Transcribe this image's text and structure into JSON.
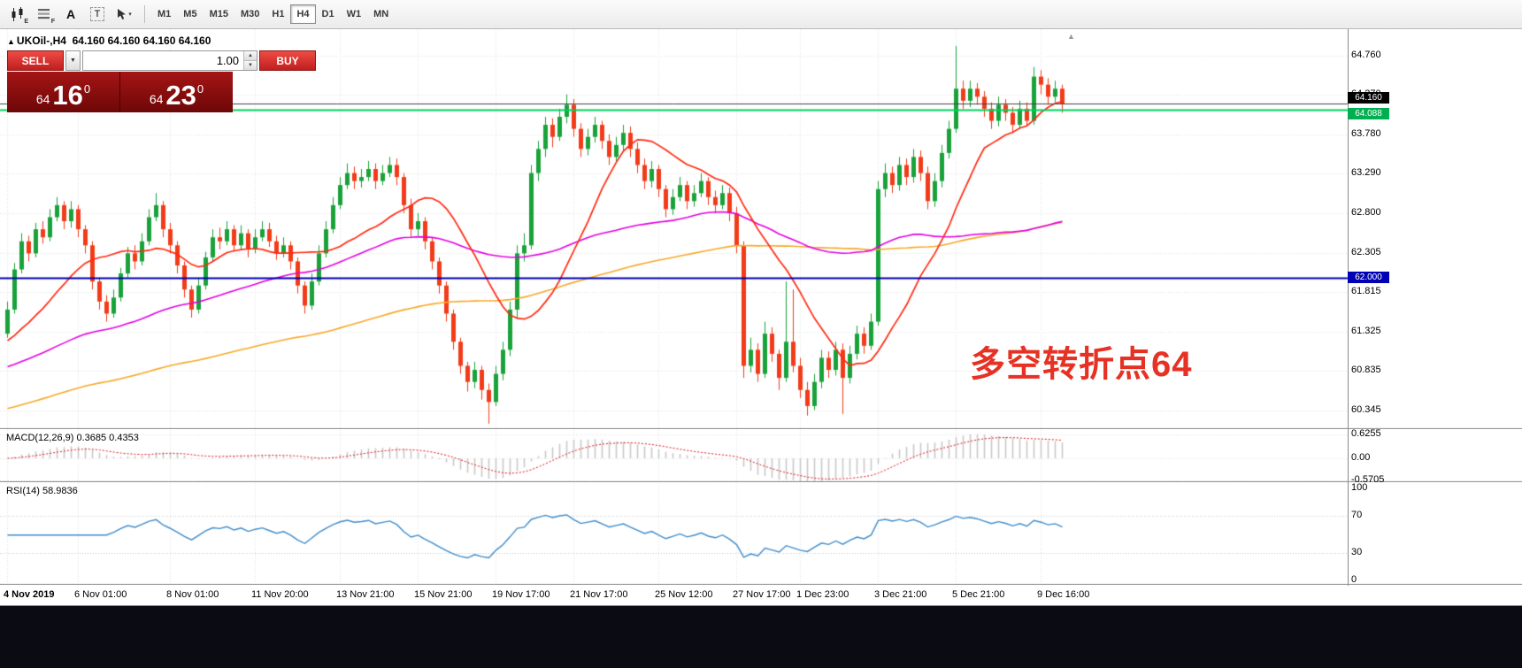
{
  "toolbar": {
    "icon_names": [
      "candlestick-chart-icon",
      "indicator-list-icon",
      "insert-text-icon",
      "insert-label-icon",
      "cursor-mode-icon"
    ],
    "icon_sub_e": "E",
    "icon_sub_f": "F",
    "icon_a": "A",
    "icon_t": "T",
    "cursor_caret": "▾",
    "timeframes": [
      "M1",
      "M5",
      "M15",
      "M30",
      "H1",
      "H4",
      "D1",
      "W1",
      "MN"
    ],
    "active_timeframe": "H4"
  },
  "chart": {
    "header_marker": "▲",
    "symbol_line": "UKOil-,H4  64.160 64.160 64.160 64.160",
    "annotation": "多空转折点64",
    "price_scale": [
      "64.760",
      "64.270",
      "63.780",
      "63.290",
      "62.800",
      "62.305",
      "61.815",
      "61.325",
      "60.835",
      "60.345"
    ],
    "badges": {
      "bid": "64.160",
      "level": "64.088",
      "hline": "62.000"
    },
    "shift_marker": "▲"
  },
  "trade_panel": {
    "sell_label": "SELL",
    "buy_label": "BUY",
    "volume": "1.00",
    "caret": "▼",
    "spin_up": "▲",
    "spin_down": "▼",
    "sell_price": {
      "small": "64",
      "big": "16",
      "sup": "0"
    },
    "buy_price": {
      "small": "64",
      "big": "23",
      "sup": "0"
    }
  },
  "macd": {
    "title": "MACD(12,26,9) 0.3685 0.4353",
    "scale": [
      "0.6255",
      "0.00",
      "-0.5705"
    ]
  },
  "rsi": {
    "title": "RSI(14) 58.9836",
    "scale": [
      "100",
      "70",
      "30",
      "0"
    ]
  },
  "time_axis": [
    {
      "label": "4 Nov 2019",
      "bar": 0
    },
    {
      "label": "6 Nov 01:00",
      "bar": 10
    },
    {
      "label": "8 Nov 01:00",
      "bar": 23
    },
    {
      "label": "11 Nov 20:00",
      "bar": 35
    },
    {
      "label": "13 Nov 21:00",
      "bar": 47
    },
    {
      "label": "15 Nov 21:00",
      "bar": 58
    },
    {
      "label": "19 Nov 17:00",
      "bar": 69
    },
    {
      "label": "21 Nov 17:00",
      "bar": 80
    },
    {
      "label": "25 Nov 12:00",
      "bar": 92
    },
    {
      "label": "27 Nov 17:00",
      "bar": 103
    },
    {
      "label": "1 Dec 23:00",
      "bar": 112
    },
    {
      "label": "3 Dec 21:00",
      "bar": 123
    },
    {
      "label": "5 Dec 21:00",
      "bar": 134
    },
    {
      "label": "9 Dec 16:00",
      "bar": 146
    }
  ],
  "chart_data": {
    "type": "candlestick",
    "symbol": "UKOil-",
    "timeframe": "H4",
    "y_ticks": [
      64.76,
      64.27,
      63.78,
      63.29,
      62.8,
      62.305,
      61.815,
      61.325,
      60.835,
      60.345
    ],
    "levels": {
      "bid": 64.16,
      "green_line": 64.088,
      "blue_line": 62.0
    },
    "indicators": {
      "macd": "MACD(12,26,9)",
      "macd_values": [
        0.3685,
        0.4353
      ],
      "rsi": "RSI(14)",
      "rsi_value": 58.9836
    },
    "colors": {
      "up": "#1aa23a",
      "down": "#f23b19",
      "ma_fast": "#ff2a12",
      "ma_mid": "#e300e3",
      "ma_slow": "#f7a928",
      "hline_blue": "#0000b4",
      "hline_green": "#00d15c",
      "macd_hist": "#c9c9c9",
      "macd_signal": "#e01414",
      "rsi_line": "#3f8ccc"
    },
    "candles": [
      [
        61.3,
        61.7,
        61.25,
        61.6
      ],
      [
        61.6,
        62.18,
        61.55,
        62.1
      ],
      [
        62.1,
        62.55,
        62.05,
        62.45
      ],
      [
        62.45,
        62.52,
        62.2,
        62.3
      ],
      [
        62.3,
        62.68,
        62.25,
        62.6
      ],
      [
        62.6,
        62.7,
        62.42,
        62.5
      ],
      [
        62.5,
        62.85,
        62.45,
        62.75
      ],
      [
        62.75,
        63.0,
        62.7,
        62.9
      ],
      [
        62.9,
        62.95,
        62.6,
        62.7
      ],
      [
        62.7,
        62.95,
        62.62,
        62.85
      ],
      [
        62.85,
        62.9,
        62.5,
        62.6
      ],
      [
        62.6,
        62.65,
        62.3,
        62.4
      ],
      [
        62.4,
        62.45,
        61.85,
        61.95
      ],
      [
        61.95,
        62.0,
        61.6,
        61.7
      ],
      [
        61.7,
        61.78,
        61.45,
        61.55
      ],
      [
        61.55,
        61.85,
        61.5,
        61.75
      ],
      [
        61.75,
        62.12,
        61.7,
        62.05
      ],
      [
        62.05,
        62.38,
        62.0,
        62.3
      ],
      [
        62.3,
        62.4,
        62.1,
        62.2
      ],
      [
        62.2,
        62.55,
        62.15,
        62.45
      ],
      [
        62.45,
        62.85,
        62.4,
        62.75
      ],
      [
        62.75,
        63.05,
        62.7,
        62.9
      ],
      [
        62.9,
        62.95,
        62.5,
        62.6
      ],
      [
        62.6,
        62.68,
        62.3,
        62.4
      ],
      [
        62.4,
        62.45,
        62.05,
        62.15
      ],
      [
        62.15,
        62.2,
        61.75,
        61.85
      ],
      [
        61.85,
        61.9,
        61.5,
        61.6
      ],
      [
        61.6,
        62.0,
        61.55,
        61.9
      ],
      [
        61.9,
        62.32,
        61.85,
        62.25
      ],
      [
        62.25,
        62.6,
        62.2,
        62.5
      ],
      [
        62.5,
        62.62,
        62.35,
        62.45
      ],
      [
        62.45,
        62.7,
        62.4,
        62.6
      ],
      [
        62.6,
        62.65,
        62.32,
        62.4
      ],
      [
        62.4,
        62.65,
        62.35,
        62.55
      ],
      [
        62.55,
        62.6,
        62.25,
        62.35
      ],
      [
        62.35,
        62.6,
        62.3,
        62.5
      ],
      [
        62.5,
        62.7,
        62.45,
        62.6
      ],
      [
        62.6,
        62.68,
        62.38,
        62.45
      ],
      [
        62.45,
        62.52,
        62.22,
        62.3
      ],
      [
        62.3,
        62.5,
        62.25,
        62.4
      ],
      [
        62.4,
        62.45,
        62.1,
        62.2
      ],
      [
        62.2,
        62.25,
        61.8,
        61.9
      ],
      [
        61.9,
        61.95,
        61.55,
        61.65
      ],
      [
        61.65,
        62.05,
        61.6,
        61.95
      ],
      [
        61.95,
        62.4,
        61.9,
        62.3
      ],
      [
        62.3,
        62.7,
        62.25,
        62.6
      ],
      [
        62.6,
        63.0,
        62.55,
        62.9
      ],
      [
        62.9,
        63.25,
        62.85,
        63.15
      ],
      [
        63.15,
        63.42,
        63.1,
        63.3
      ],
      [
        63.3,
        63.38,
        63.1,
        63.2
      ],
      [
        63.2,
        63.35,
        63.12,
        63.25
      ],
      [
        63.25,
        63.45,
        63.2,
        63.35
      ],
      [
        63.35,
        63.42,
        63.1,
        63.2
      ],
      [
        63.2,
        63.4,
        63.15,
        63.3
      ],
      [
        63.3,
        63.5,
        63.25,
        63.4
      ],
      [
        63.4,
        63.48,
        63.15,
        63.25
      ],
      [
        63.25,
        63.3,
        62.8,
        62.9
      ],
      [
        62.9,
        62.98,
        62.5,
        62.6
      ],
      [
        62.6,
        62.8,
        62.52,
        62.7
      ],
      [
        62.7,
        62.75,
        62.35,
        62.45
      ],
      [
        62.45,
        62.5,
        62.1,
        62.2
      ],
      [
        62.2,
        62.25,
        61.8,
        61.9
      ],
      [
        61.9,
        61.95,
        61.45,
        61.55
      ],
      [
        61.55,
        61.6,
        61.1,
        61.2
      ],
      [
        61.2,
        61.25,
        60.8,
        60.9
      ],
      [
        60.9,
        60.95,
        60.58,
        60.7
      ],
      [
        60.7,
        60.95,
        60.62,
        60.85
      ],
      [
        60.85,
        60.9,
        60.48,
        60.6
      ],
      [
        60.6,
        60.68,
        60.18,
        60.45
      ],
      [
        60.45,
        60.9,
        60.4,
        60.8
      ],
      [
        60.8,
        61.2,
        60.72,
        61.1
      ],
      [
        61.1,
        61.7,
        61.02,
        61.6
      ],
      [
        61.6,
        62.4,
        61.5,
        62.3
      ],
      [
        62.3,
        62.55,
        62.2,
        62.4
      ],
      [
        62.4,
        63.4,
        62.35,
        63.3
      ],
      [
        63.3,
        63.7,
        63.2,
        63.6
      ],
      [
        63.6,
        64.0,
        63.5,
        63.9
      ],
      [
        63.9,
        63.98,
        63.62,
        63.75
      ],
      [
        63.75,
        64.1,
        63.7,
        64.0
      ],
      [
        64.0,
        64.28,
        63.92,
        64.15
      ],
      [
        64.15,
        64.22,
        63.75,
        63.85
      ],
      [
        63.85,
        63.92,
        63.5,
        63.6
      ],
      [
        63.6,
        63.85,
        63.52,
        63.75
      ],
      [
        63.75,
        64.0,
        63.68,
        63.9
      ],
      [
        63.9,
        63.95,
        63.6,
        63.7
      ],
      [
        63.7,
        63.78,
        63.4,
        63.5
      ],
      [
        63.5,
        63.75,
        63.45,
        63.65
      ],
      [
        63.65,
        63.9,
        63.58,
        63.8
      ],
      [
        63.8,
        63.88,
        63.5,
        63.6
      ],
      [
        63.6,
        63.68,
        63.3,
        63.4
      ],
      [
        63.4,
        63.48,
        63.1,
        63.2
      ],
      [
        63.2,
        63.45,
        63.12,
        63.35
      ],
      [
        63.35,
        63.4,
        63.0,
        63.1
      ],
      [
        63.1,
        63.15,
        62.75,
        62.85
      ],
      [
        62.85,
        63.1,
        62.78,
        63.0
      ],
      [
        63.0,
        63.25,
        62.95,
        63.15
      ],
      [
        63.15,
        63.2,
        62.85,
        62.95
      ],
      [
        62.95,
        63.15,
        62.88,
        63.05
      ],
      [
        63.05,
        63.3,
        63.0,
        63.2
      ],
      [
        63.2,
        63.25,
        62.9,
        63.0
      ],
      [
        63.0,
        63.08,
        62.8,
        62.9
      ],
      [
        62.9,
        63.15,
        62.85,
        63.05
      ],
      [
        63.05,
        63.12,
        62.7,
        62.8
      ],
      [
        62.8,
        62.88,
        62.3,
        62.4
      ],
      [
        62.4,
        62.45,
        60.75,
        60.9
      ],
      [
        60.9,
        61.25,
        60.82,
        61.1
      ],
      [
        61.1,
        61.18,
        60.7,
        60.8
      ],
      [
        60.8,
        61.45,
        60.75,
        61.3
      ],
      [
        61.3,
        61.38,
        60.95,
        61.05
      ],
      [
        61.05,
        61.1,
        60.6,
        60.75
      ],
      [
        60.75,
        61.95,
        60.7,
        61.2
      ],
      [
        61.2,
        61.85,
        60.82,
        60.9
      ],
      [
        60.9,
        61.0,
        60.5,
        60.6
      ],
      [
        60.6,
        60.7,
        60.28,
        60.4
      ],
      [
        60.4,
        60.8,
        60.35,
        60.7
      ],
      [
        60.7,
        61.1,
        60.62,
        61.0
      ],
      [
        61.0,
        61.08,
        60.75,
        60.85
      ],
      [
        60.85,
        61.2,
        60.78,
        61.1
      ],
      [
        61.1,
        61.18,
        60.3,
        60.75
      ],
      [
        60.75,
        61.15,
        60.68,
        61.05
      ],
      [
        61.05,
        61.4,
        60.98,
        61.3
      ],
      [
        61.3,
        61.38,
        61.05,
        61.15
      ],
      [
        61.15,
        61.55,
        61.1,
        61.45
      ],
      [
        61.45,
        63.2,
        61.4,
        63.1
      ],
      [
        63.1,
        63.42,
        63.0,
        63.3
      ],
      [
        63.3,
        63.38,
        63.05,
        63.15
      ],
      [
        63.15,
        63.5,
        63.08,
        63.4
      ],
      [
        63.4,
        63.48,
        63.15,
        63.25
      ],
      [
        63.25,
        63.6,
        63.18,
        63.5
      ],
      [
        63.5,
        63.58,
        63.2,
        63.3
      ],
      [
        63.3,
        63.38,
        62.85,
        62.95
      ],
      [
        62.95,
        63.3,
        62.88,
        63.2
      ],
      [
        63.2,
        63.65,
        63.12,
        63.55
      ],
      [
        63.55,
        63.95,
        63.48,
        63.85
      ],
      [
        63.85,
        64.88,
        63.8,
        64.35
      ],
      [
        64.35,
        64.45,
        64.1,
        64.2
      ],
      [
        64.2,
        64.45,
        64.12,
        64.35
      ],
      [
        64.35,
        64.42,
        64.15,
        64.25
      ],
      [
        64.25,
        64.32,
        64.0,
        64.1
      ],
      [
        64.1,
        64.18,
        63.85,
        63.95
      ],
      [
        63.95,
        64.25,
        63.88,
        64.15
      ],
      [
        64.15,
        64.22,
        63.95,
        64.05
      ],
      [
        64.05,
        64.12,
        63.8,
        63.9
      ],
      [
        63.9,
        64.2,
        63.85,
        64.1
      ],
      [
        64.1,
        64.18,
        63.88,
        63.95
      ],
      [
        63.95,
        64.62,
        63.9,
        64.5
      ],
      [
        64.5,
        64.58,
        64.28,
        64.4
      ],
      [
        64.4,
        64.48,
        64.15,
        64.25
      ],
      [
        64.25,
        64.45,
        64.18,
        64.35
      ],
      [
        64.35,
        64.4,
        64.05,
        64.16
      ]
    ]
  }
}
